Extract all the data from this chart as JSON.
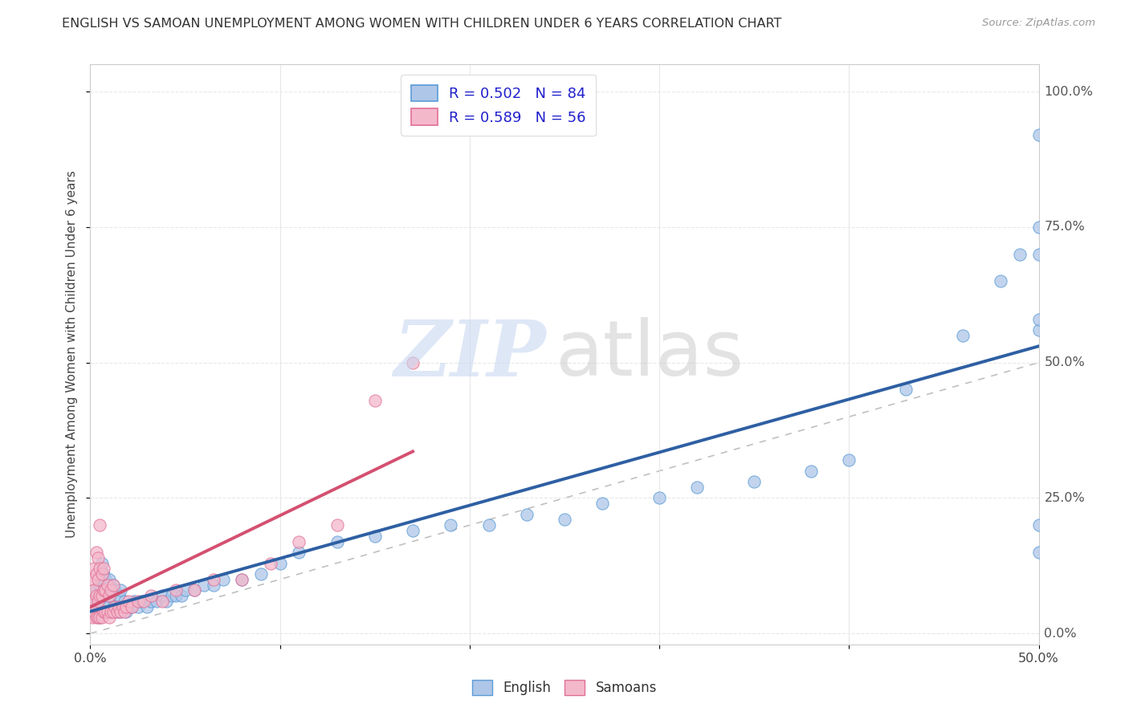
{
  "title": "ENGLISH VS SAMOAN UNEMPLOYMENT AMONG WOMEN WITH CHILDREN UNDER 6 YEARS CORRELATION CHART",
  "source": "Source: ZipAtlas.com",
  "ylabel_text": "Unemployment Among Women with Children Under 6 years",
  "xlim": [
    0.0,
    0.5
  ],
  "ylim": [
    -0.02,
    1.05
  ],
  "xticks": [
    0.0,
    0.1,
    0.2,
    0.3,
    0.4,
    0.5
  ],
  "xtick_labels": [
    "0.0%",
    "",
    "",
    "",
    "",
    "50.0%"
  ],
  "yticks": [
    0.0,
    0.25,
    0.5,
    0.75,
    1.0
  ],
  "ytick_labels": [
    "0.0%",
    "25.0%",
    "50.0%",
    "75.0%",
    "100.0%"
  ],
  "english_color": "#aec6e8",
  "english_edge": "#5b9bd5",
  "samoan_color": "#f4b8cb",
  "samoan_edge": "#e07095",
  "english_R": 0.502,
  "english_N": 84,
  "samoan_R": 0.589,
  "samoan_N": 56,
  "english_line_color": "#2e5fa3",
  "samoan_line_color": "#d45070",
  "diagonal_color": "#c0c0c0",
  "watermark_zip": "ZIP",
  "watermark_atlas": "atlas",
  "background_color": "#ffffff",
  "grid_color": "#e8e8e8",
  "english_x": [
    0.001,
    0.002,
    0.003,
    0.003,
    0.004,
    0.004,
    0.005,
    0.005,
    0.005,
    0.006,
    0.006,
    0.006,
    0.006,
    0.007,
    0.007,
    0.007,
    0.008,
    0.008,
    0.008,
    0.009,
    0.009,
    0.01,
    0.01,
    0.01,
    0.011,
    0.011,
    0.012,
    0.012,
    0.013,
    0.013,
    0.014,
    0.015,
    0.015,
    0.016,
    0.016,
    0.017,
    0.018,
    0.019,
    0.02,
    0.022,
    0.023,
    0.025,
    0.027,
    0.03,
    0.032,
    0.035,
    0.038,
    0.04,
    0.043,
    0.045,
    0.048,
    0.05,
    0.055,
    0.06,
    0.065,
    0.07,
    0.08,
    0.09,
    0.1,
    0.11,
    0.13,
    0.15,
    0.17,
    0.19,
    0.21,
    0.23,
    0.25,
    0.27,
    0.3,
    0.32,
    0.35,
    0.38,
    0.4,
    0.43,
    0.46,
    0.48,
    0.49,
    0.5,
    0.5,
    0.5,
    0.5,
    0.5,
    0.5,
    0.5
  ],
  "english_y": [
    0.04,
    0.06,
    0.05,
    0.08,
    0.04,
    0.07,
    0.03,
    0.06,
    0.09,
    0.04,
    0.07,
    0.1,
    0.13,
    0.04,
    0.07,
    0.11,
    0.04,
    0.07,
    0.1,
    0.05,
    0.08,
    0.04,
    0.07,
    0.1,
    0.04,
    0.07,
    0.05,
    0.09,
    0.04,
    0.08,
    0.05,
    0.04,
    0.07,
    0.04,
    0.08,
    0.05,
    0.06,
    0.04,
    0.05,
    0.05,
    0.06,
    0.05,
    0.06,
    0.05,
    0.06,
    0.06,
    0.07,
    0.06,
    0.07,
    0.07,
    0.07,
    0.08,
    0.08,
    0.09,
    0.09,
    0.1,
    0.1,
    0.11,
    0.13,
    0.15,
    0.17,
    0.18,
    0.19,
    0.2,
    0.2,
    0.22,
    0.21,
    0.24,
    0.25,
    0.27,
    0.28,
    0.3,
    0.32,
    0.45,
    0.55,
    0.65,
    0.7,
    0.2,
    0.56,
    0.58,
    0.7,
    0.75,
    0.92,
    0.15
  ],
  "samoan_x": [
    0.001,
    0.001,
    0.001,
    0.002,
    0.002,
    0.002,
    0.003,
    0.003,
    0.003,
    0.003,
    0.004,
    0.004,
    0.004,
    0.004,
    0.005,
    0.005,
    0.005,
    0.005,
    0.006,
    0.006,
    0.006,
    0.007,
    0.007,
    0.007,
    0.008,
    0.008,
    0.009,
    0.009,
    0.01,
    0.01,
    0.011,
    0.011,
    0.012,
    0.012,
    0.013,
    0.014,
    0.015,
    0.016,
    0.017,
    0.018,
    0.019,
    0.02,
    0.022,
    0.025,
    0.028,
    0.032,
    0.038,
    0.045,
    0.055,
    0.065,
    0.08,
    0.095,
    0.11,
    0.13,
    0.15,
    0.17
  ],
  "samoan_y": [
    0.03,
    0.06,
    0.1,
    0.04,
    0.08,
    0.12,
    0.03,
    0.07,
    0.11,
    0.15,
    0.03,
    0.06,
    0.1,
    0.14,
    0.03,
    0.07,
    0.12,
    0.2,
    0.03,
    0.07,
    0.11,
    0.04,
    0.08,
    0.12,
    0.04,
    0.08,
    0.04,
    0.09,
    0.03,
    0.07,
    0.04,
    0.08,
    0.04,
    0.09,
    0.05,
    0.04,
    0.05,
    0.04,
    0.05,
    0.04,
    0.05,
    0.06,
    0.05,
    0.06,
    0.06,
    0.07,
    0.06,
    0.08,
    0.08,
    0.1,
    0.1,
    0.13,
    0.17,
    0.2,
    0.43,
    0.5
  ]
}
